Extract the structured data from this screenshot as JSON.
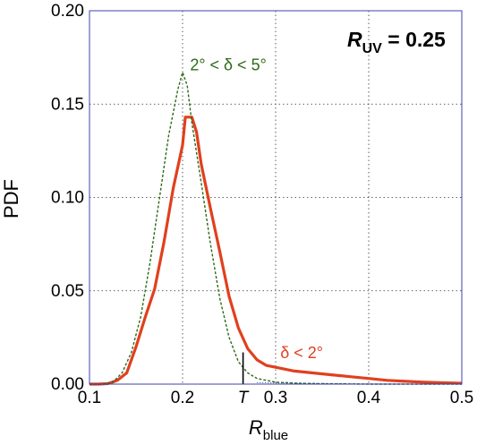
{
  "chart_data": {
    "type": "line",
    "title": "",
    "xlabel": {
      "main": "R",
      "sub": "blue"
    },
    "ylabel": "PDF",
    "xlim": [
      0.1,
      0.5
    ],
    "ylim": [
      0,
      0.2
    ],
    "x_ticks": [
      0.1,
      0.2,
      0.3,
      0.4,
      0.5
    ],
    "x_tick_labels": [
      "0.1",
      "0.2",
      "",
      "0.3",
      "",
      "0.4",
      "",
      "0.5"
    ],
    "x_tick_label_list": [
      "0.1",
      "0.2",
      "0.3",
      "0.4",
      "0.5"
    ],
    "y_ticks": [
      0,
      0.05,
      0.1,
      0.15,
      0.2
    ],
    "y_tick_labels": [
      "0.00",
      "0.05",
      "0.10",
      "0.15",
      "0.20"
    ],
    "grid": true,
    "grid_style": "dotted",
    "threshold": {
      "label": "T",
      "x": 0.265,
      "y_top": 0.017
    },
    "annotation_main": {
      "italic": "R",
      "sub": "UV",
      "rest": " = 0.25"
    },
    "series": [
      {
        "name": "δ < 2°",
        "color": "#e0401e",
        "style": "solid",
        "points": [
          [
            0.1,
            0.0
          ],
          [
            0.11,
            0.0
          ],
          [
            0.12,
            0.0003
          ],
          [
            0.13,
            0.002
          ],
          [
            0.14,
            0.006
          ],
          [
            0.15,
            0.02
          ],
          [
            0.16,
            0.036
          ],
          [
            0.17,
            0.051
          ],
          [
            0.18,
            0.076
          ],
          [
            0.19,
            0.105
          ],
          [
            0.2,
            0.128
          ],
          [
            0.203,
            0.143
          ],
          [
            0.21,
            0.143
          ],
          [
            0.215,
            0.135
          ],
          [
            0.22,
            0.118
          ],
          [
            0.23,
            0.094
          ],
          [
            0.24,
            0.071
          ],
          [
            0.25,
            0.047
          ],
          [
            0.26,
            0.03
          ],
          [
            0.27,
            0.019
          ],
          [
            0.28,
            0.013
          ],
          [
            0.29,
            0.01
          ],
          [
            0.3,
            0.009
          ],
          [
            0.31,
            0.008
          ],
          [
            0.32,
            0.007
          ],
          [
            0.34,
            0.006
          ],
          [
            0.36,
            0.005
          ],
          [
            0.38,
            0.004
          ],
          [
            0.4,
            0.003
          ],
          [
            0.42,
            0.002
          ],
          [
            0.44,
            0.0015
          ],
          [
            0.46,
            0.001
          ],
          [
            0.48,
            0.0007
          ],
          [
            0.5,
            0.0005
          ]
        ]
      },
      {
        "name": "2° < δ < 5°",
        "color": "#2d6a17",
        "style": "dashed",
        "points": [
          [
            0.1,
            0.0
          ],
          [
            0.115,
            0.0
          ],
          [
            0.125,
            0.001
          ],
          [
            0.135,
            0.006
          ],
          [
            0.145,
            0.017
          ],
          [
            0.155,
            0.036
          ],
          [
            0.165,
            0.065
          ],
          [
            0.175,
            0.099
          ],
          [
            0.185,
            0.133
          ],
          [
            0.195,
            0.158
          ],
          [
            0.2,
            0.167
          ],
          [
            0.205,
            0.16
          ],
          [
            0.21,
            0.14
          ],
          [
            0.22,
            0.108
          ],
          [
            0.23,
            0.075
          ],
          [
            0.24,
            0.046
          ],
          [
            0.25,
            0.025
          ],
          [
            0.26,
            0.012
          ],
          [
            0.27,
            0.006
          ],
          [
            0.28,
            0.003
          ],
          [
            0.3,
            0.001
          ],
          [
            0.33,
            0.0004
          ],
          [
            0.36,
            0.0002
          ],
          [
            0.4,
            0.0
          ],
          [
            0.5,
            0.0
          ]
        ]
      },
      {
        "name": "",
        "color": "#2244aa",
        "style": "dotted",
        "points": [
          [
            0.28,
            0.0008
          ],
          [
            0.3,
            0.0006
          ],
          [
            0.32,
            0.0004
          ],
          [
            0.36,
            0.0002
          ],
          [
            0.4,
            0.0001
          ],
          [
            0.45,
            0.0
          ],
          [
            0.5,
            0.0
          ]
        ]
      }
    ],
    "series_labels": [
      {
        "text": "δ < 2°",
        "x": 0.305,
        "y": 0.014
      },
      {
        "text": "2° < δ < 5°",
        "x": 0.208,
        "y": 0.168
      }
    ]
  }
}
